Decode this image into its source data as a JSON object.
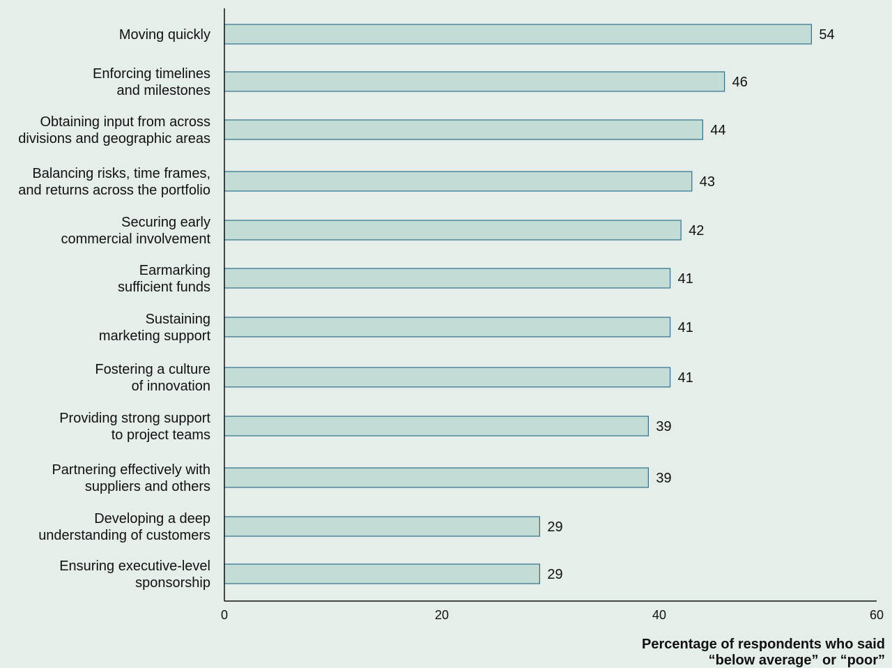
{
  "chart_data": {
    "type": "bar",
    "orientation": "horizontal",
    "categories": [
      [
        "Moving quickly"
      ],
      [
        "Enforcing timelines",
        "and milestones"
      ],
      [
        "Obtaining input from across",
        "divisions and geographic areas"
      ],
      [
        "Balancing risks, time frames,",
        "and returns across the portfolio"
      ],
      [
        "Securing early",
        "commercial involvement"
      ],
      [
        "Earmarking",
        "sufficient funds"
      ],
      [
        "Sustaining",
        "marketing support"
      ],
      [
        "Fostering a culture",
        "of innovation"
      ],
      [
        "Providing strong support",
        "to project teams"
      ],
      [
        "Partnering effectively with",
        "suppliers and others"
      ],
      [
        "Developing a deep",
        "understanding of customers"
      ],
      [
        "Ensuring executive-level",
        "sponsorship"
      ]
    ],
    "values": [
      54,
      46,
      44,
      43,
      42,
      41,
      41,
      41,
      39,
      39,
      29,
      29
    ],
    "xticks": [
      "0",
      "20",
      "40",
      "60"
    ],
    "xlim": [
      0,
      60
    ],
    "xlabel": [
      "Percentage of respondents who said",
      "“below average” or “poor”"
    ],
    "title": "",
    "grid": false,
    "colors": {
      "bar_fill": "#c3ddd6",
      "bar_stroke": "#2e6f8e",
      "background": "#e6eeea"
    }
  }
}
